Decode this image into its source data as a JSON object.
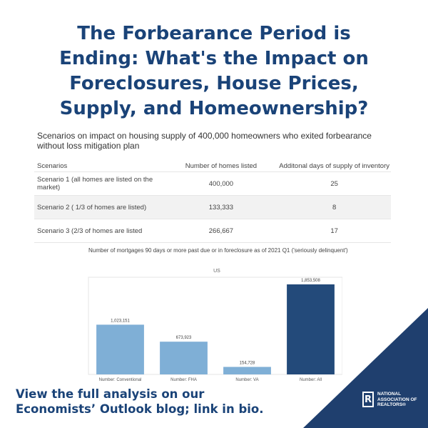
{
  "headline": {
    "line1": "The Forbearance Period is",
    "line2": "Ending: What's the Impact on",
    "line3": "Foreclosures, House Prices,",
    "line4": "Supply, and Homeownership?"
  },
  "table": {
    "title": "Scenarios on impact on housing supply of 400,000 homeowners who exited forbearance without loss mitigation plan",
    "headers": [
      "Scenarios",
      "Number of homes listed",
      "Additonal days of supply of inventory"
    ],
    "rows": [
      {
        "scenario": "Scenario 1 (all homes are listed on the market)",
        "homes": "400,000",
        "days": "25"
      },
      {
        "scenario": "Scenario 2 ( 1/3 of homes are listed)",
        "homes": "133,333",
        "days": "8"
      },
      {
        "scenario": "Scenario 3 (2/3 of homes are listed",
        "homes": "266,667",
        "days": "17"
      }
    ]
  },
  "chart_data": {
    "type": "bar",
    "title": "Number of mortgages 90 days or more past due or in  foreclosure as of 2021 Q1 ('seriously delinquent')",
    "series_label": "US",
    "categories": [
      "Number: Conventional",
      "Number: FHA",
      "Number: VA",
      "Number: All"
    ],
    "values": [
      1023151,
      673923,
      154728,
      1853508
    ],
    "value_labels": [
      "1,023,151",
      "673,923",
      "154,728",
      "1,853,508"
    ],
    "colors": [
      "#7fafd6",
      "#7fafd6",
      "#7fafd6",
      "#234a7a"
    ],
    "ylim": [
      0,
      2000000
    ],
    "grid": false,
    "legend": "none"
  },
  "footer": {
    "line1": "View the full analysis on our",
    "line2": "Economists’ Outlook blog; link in bio."
  },
  "logo": {
    "mark": "R",
    "line1": "NATIONAL",
    "line2": "ASSOCIATION OF",
    "line3": "REALTORS®"
  },
  "colors": {
    "brand_blue": "#1a4378",
    "corner_blue": "#1f3f6e"
  }
}
